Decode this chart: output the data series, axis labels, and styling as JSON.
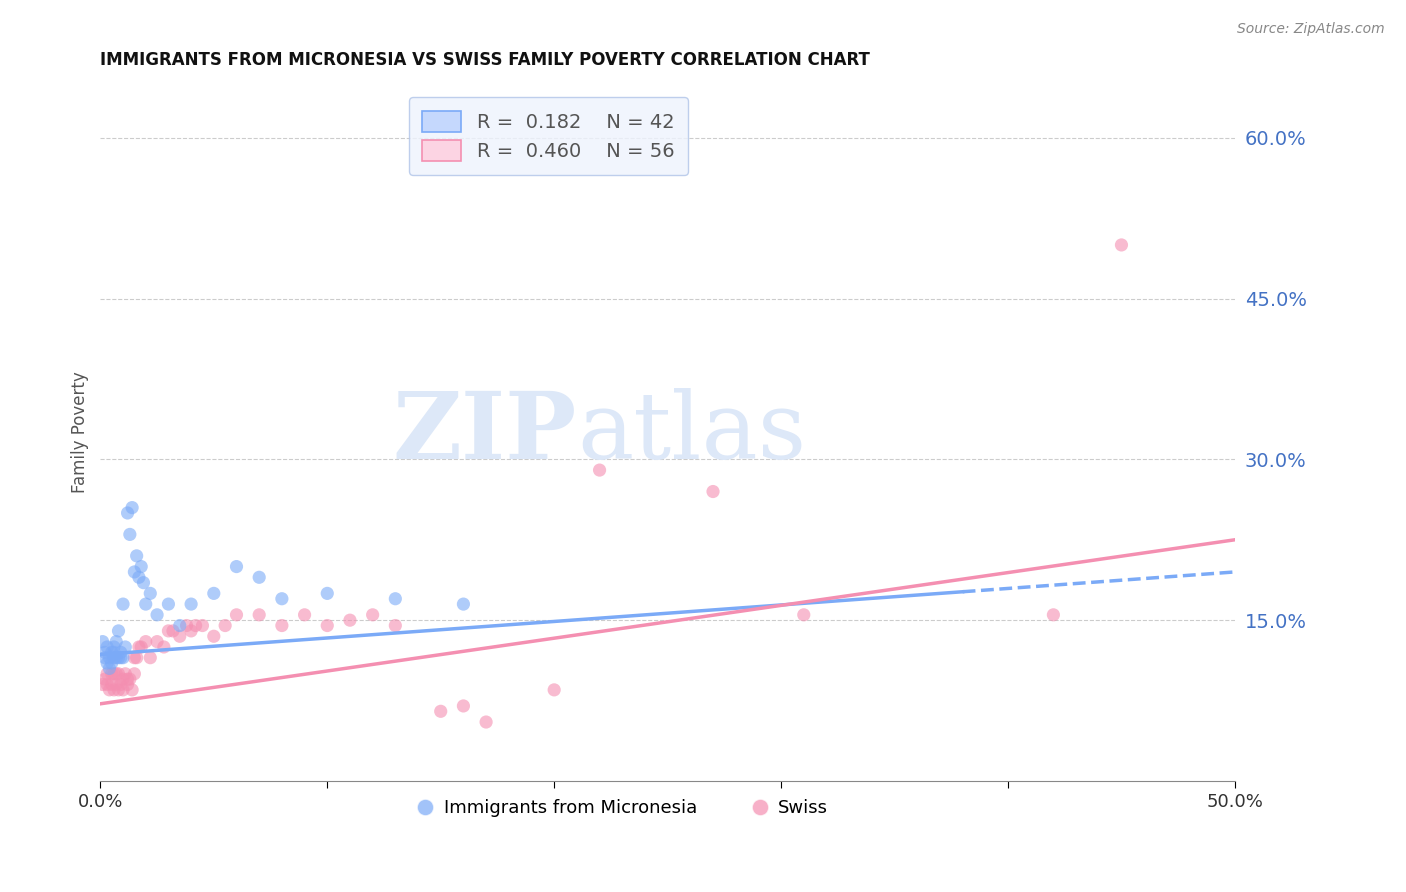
{
  "title": "IMMIGRANTS FROM MICRONESIA VS SWISS FAMILY POVERTY CORRELATION CHART",
  "source": "Source: ZipAtlas.com",
  "ylabel": "Family Poverty",
  "xlim": [
    0.0,
    0.5
  ],
  "ylim": [
    0.0,
    0.65
  ],
  "xticks": [
    0.0,
    0.1,
    0.2,
    0.3,
    0.4,
    0.5
  ],
  "xticklabels": [
    "0.0%",
    "",
    "",
    "",
    "",
    "50.0%"
  ],
  "yticks_right": [
    0.15,
    0.3,
    0.45,
    0.6
  ],
  "ytick_right_labels": [
    "15.0%",
    "30.0%",
    "45.0%",
    "60.0%"
  ],
  "watermark_zip": "ZIP",
  "watermark_atlas": "atlas",
  "series": [
    {
      "name": "Immigrants from Micronesia",
      "color": "#7baaf7",
      "fill_color": "#c5d8fd",
      "R": 0.182,
      "N": 42,
      "x": [
        0.001,
        0.002,
        0.002,
        0.003,
        0.003,
        0.004,
        0.004,
        0.005,
        0.005,
        0.006,
        0.006,
        0.006,
        0.007,
        0.007,
        0.008,
        0.008,
        0.009,
        0.009,
        0.01,
        0.01,
        0.011,
        0.012,
        0.013,
        0.014,
        0.015,
        0.016,
        0.017,
        0.018,
        0.019,
        0.02,
        0.022,
        0.025,
        0.03,
        0.035,
        0.04,
        0.05,
        0.06,
        0.07,
        0.08,
        0.1,
        0.13,
        0.16
      ],
      "y": [
        0.13,
        0.12,
        0.115,
        0.125,
        0.11,
        0.115,
        0.105,
        0.12,
        0.11,
        0.125,
        0.12,
        0.115,
        0.115,
        0.13,
        0.115,
        0.14,
        0.12,
        0.115,
        0.115,
        0.165,
        0.125,
        0.25,
        0.23,
        0.255,
        0.195,
        0.21,
        0.19,
        0.2,
        0.185,
        0.165,
        0.175,
        0.155,
        0.165,
        0.145,
        0.165,
        0.175,
        0.2,
        0.19,
        0.17,
        0.175,
        0.17,
        0.165
      ],
      "trend_x": [
        0.0,
        0.5
      ],
      "trend_y": [
        0.118,
        0.195
      ],
      "trend_dash_start": 0.38
    },
    {
      "name": "Swiss",
      "color": "#f48fb1",
      "fill_color": "#fcd4e3",
      "R": 0.46,
      "N": 56,
      "x": [
        0.001,
        0.002,
        0.003,
        0.003,
        0.004,
        0.005,
        0.005,
        0.006,
        0.006,
        0.007,
        0.007,
        0.008,
        0.008,
        0.009,
        0.01,
        0.01,
        0.011,
        0.012,
        0.012,
        0.013,
        0.014,
        0.015,
        0.015,
        0.016,
        0.017,
        0.018,
        0.02,
        0.022,
        0.025,
        0.028,
        0.03,
        0.032,
        0.035,
        0.038,
        0.04,
        0.042,
        0.045,
        0.05,
        0.055,
        0.06,
        0.07,
        0.08,
        0.09,
        0.1,
        0.11,
        0.12,
        0.13,
        0.15,
        0.16,
        0.17,
        0.2,
        0.22,
        0.27,
        0.31,
        0.42,
        0.45
      ],
      "y": [
        0.09,
        0.095,
        0.09,
        0.1,
        0.085,
        0.09,
        0.1,
        0.085,
        0.1,
        0.09,
        0.1,
        0.085,
        0.1,
        0.09,
        0.085,
        0.095,
        0.1,
        0.09,
        0.095,
        0.095,
        0.085,
        0.1,
        0.115,
        0.115,
        0.125,
        0.125,
        0.13,
        0.115,
        0.13,
        0.125,
        0.14,
        0.14,
        0.135,
        0.145,
        0.14,
        0.145,
        0.145,
        0.135,
        0.145,
        0.155,
        0.155,
        0.145,
        0.155,
        0.145,
        0.15,
        0.155,
        0.145,
        0.065,
        0.07,
        0.055,
        0.085,
        0.29,
        0.27,
        0.155,
        0.155,
        0.5
      ],
      "trend_x": [
        0.0,
        0.5
      ],
      "trend_y": [
        0.072,
        0.225
      ]
    }
  ]
}
